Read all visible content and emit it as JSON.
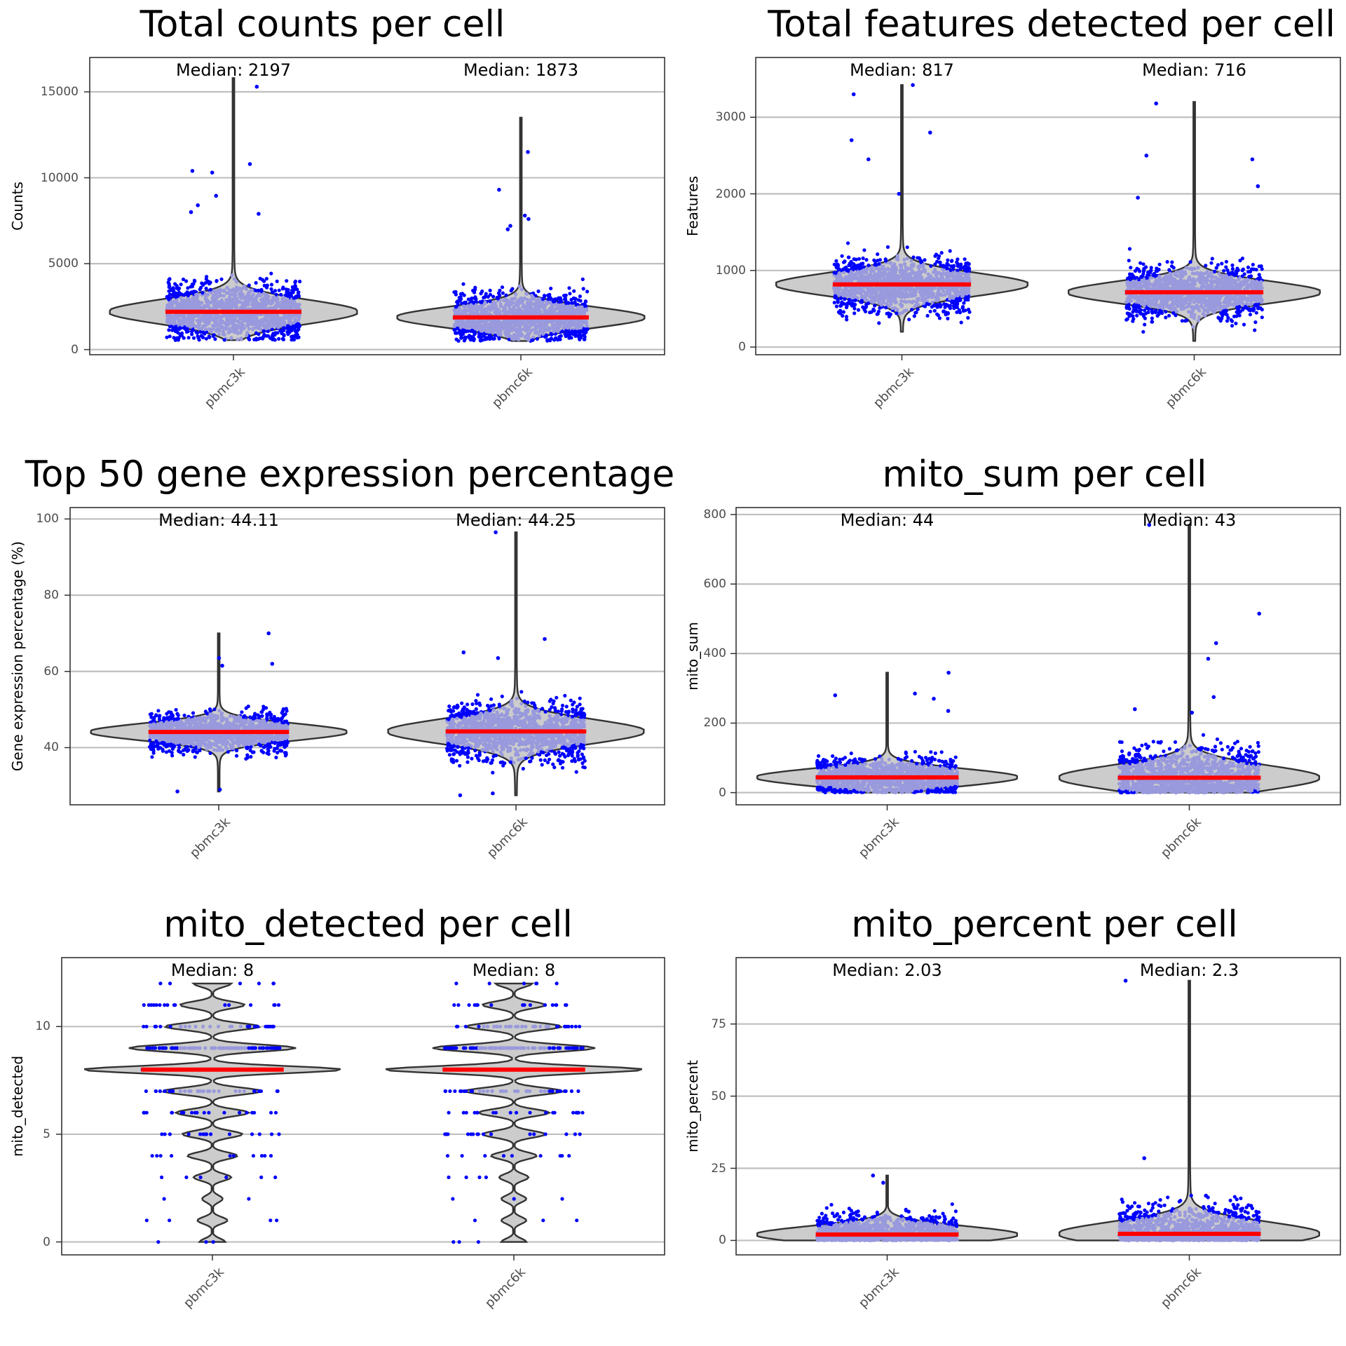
{
  "colors": {
    "violin_fill": "#cccccc",
    "violin_stroke": "#333333",
    "points": "#0000ff",
    "points_overlay": "#9999dd",
    "median_line": "#ff0000",
    "grid": "#bfbfbf",
    "panel_border": "#333333"
  },
  "chart_data": [
    {
      "type": "violin",
      "title": "Total counts per cell",
      "ylabel": "Counts",
      "categories": [
        "pbmc3k",
        "pbmc6k"
      ],
      "ylim": [
        -300,
        17000
      ],
      "yticks": [
        0,
        5000,
        10000,
        15000
      ],
      "ytick_labels": [
        "0",
        "5000",
        "10000",
        "15000"
      ],
      "medians": [
        2197,
        1873
      ],
      "median_labels": [
        "Median: 2197",
        "Median: 1873"
      ],
      "ranges": [
        [
          550,
          15800
        ],
        [
          500,
          13500
        ]
      ],
      "outliers": [
        [
          15300,
          10800,
          10400,
          10300,
          8950,
          8400,
          8000,
          7900
        ],
        [
          11500,
          9300,
          7800,
          7600,
          7200,
          7000
        ]
      ],
      "discrete": false
    },
    {
      "type": "violin",
      "title": "Total features detected per cell",
      "ylabel": "Features",
      "categories": [
        "pbmc3k",
        "pbmc6k"
      ],
      "ylim": [
        -100,
        3780
      ],
      "yticks": [
        0,
        1000,
        2000,
        3000
      ],
      "ytick_labels": [
        "0",
        "1000",
        "2000",
        "3000"
      ],
      "medians": [
        817,
        716
      ],
      "median_labels": [
        "Median: 817",
        "Median: 716"
      ],
      "ranges": [
        [
          200,
          3420
        ],
        [
          80,
          3200
        ]
      ],
      "outliers": [
        [
          3420,
          3300,
          2800,
          2700,
          2450,
          2000
        ],
        [
          3180,
          2500,
          2450,
          2100,
          1950
        ]
      ],
      "discrete": false
    },
    {
      "type": "violin",
      "title": "Top 50 gene expression percentage",
      "ylabel": "Gene expression percentage (%)",
      "categories": [
        "pbmc3k",
        "pbmc6k"
      ],
      "ylim": [
        25,
        103
      ],
      "yticks": [
        40,
        60,
        80,
        100
      ],
      "ytick_labels": [
        "40",
        "60",
        "80",
        "100"
      ],
      "medians": [
        44.11,
        44.25
      ],
      "median_labels": [
        "Median: 44.11",
        "Median: 44.25"
      ],
      "ranges": [
        [
          28.5,
          70
        ],
        [
          27.5,
          96.5
        ]
      ],
      "outliers": [
        [
          70,
          63.5,
          62,
          61.5,
          29,
          28.5
        ],
        [
          96.5,
          68.5,
          65,
          63.5,
          28,
          27.5
        ]
      ],
      "discrete": false
    },
    {
      "type": "violin",
      "title": "mito_sum per cell",
      "ylabel": "mito_sum",
      "categories": [
        "pbmc3k",
        "pbmc6k"
      ],
      "ylim": [
        -35,
        820
      ],
      "yticks": [
        0,
        200,
        400,
        600,
        800
      ],
      "ytick_labels": [
        "0",
        "200",
        "400",
        "600",
        "800"
      ],
      "medians": [
        44,
        43
      ],
      "median_labels": [
        "Median: 44",
        "Median: 43"
      ],
      "ranges": [
        [
          0,
          345
        ],
        [
          0,
          770
        ]
      ],
      "outliers": [
        [
          345,
          285,
          280,
          270,
          235
        ],
        [
          770,
          515,
          430,
          385,
          275,
          240,
          230
        ]
      ],
      "discrete": false
    },
    {
      "type": "violin",
      "title": "mito_detected per cell",
      "ylabel": "mito_detected",
      "categories": [
        "pbmc3k",
        "pbmc6k"
      ],
      "ylim": [
        -0.6,
        13.2
      ],
      "yticks": [
        0,
        5,
        10
      ],
      "ytick_labels": [
        "0",
        "5",
        "10"
      ],
      "medians": [
        8,
        8
      ],
      "median_labels": [
        "Median: 8",
        "Median: 8"
      ],
      "ranges": [
        [
          0,
          12
        ],
        [
          0,
          12
        ]
      ],
      "outliers": [
        [],
        []
      ],
      "discrete": true,
      "level_counts": [
        [
          3,
          4,
          2,
          6,
          10,
          14,
          20,
          35,
          200,
          90,
          32,
          16,
          6
        ],
        [
          3,
          3,
          3,
          4,
          9,
          16,
          20,
          36,
          210,
          90,
          34,
          16,
          6
        ]
      ]
    },
    {
      "type": "violin",
      "title": "mito_percent per cell",
      "ylabel": "mito_percent",
      "categories": [
        "pbmc3k",
        "pbmc6k"
      ],
      "ylim": [
        -5,
        98
      ],
      "yticks": [
        0,
        25,
        50,
        75
      ],
      "ytick_labels": [
        "0",
        "25",
        "50",
        "75"
      ],
      "medians": [
        2.03,
        2.3
      ],
      "median_labels": [
        "Median: 2.03",
        "Median: 2.3"
      ],
      "ranges": [
        [
          0,
          22.5
        ],
        [
          0,
          90
        ]
      ],
      "outliers": [
        [
          22.5,
          20,
          10
        ],
        [
          90,
          28.5,
          15.5,
          12
        ]
      ],
      "discrete": false
    }
  ]
}
